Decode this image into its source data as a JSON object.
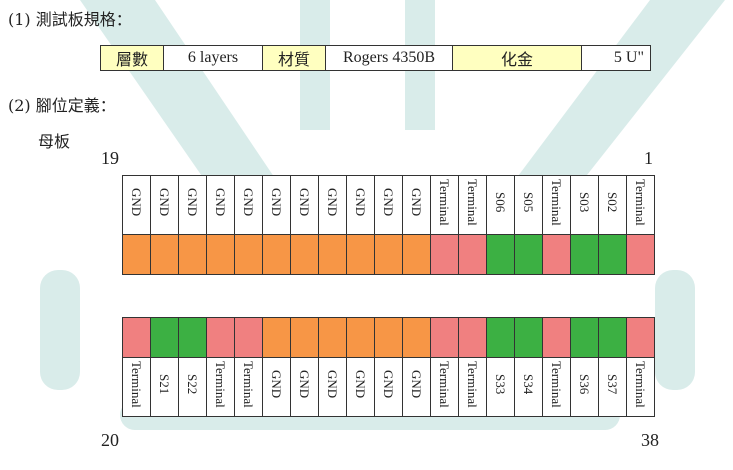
{
  "colors": {
    "gnd": "#f79646",
    "terminal": "#f08080",
    "signal": "#3cb043",
    "spec_label_bg": "#ffffc0",
    "watermark": "#d9ecea"
  },
  "section1": {
    "prefix": "(1)",
    "title": "測試板規格："
  },
  "spec": [
    {
      "label": "層數",
      "value": "6 layers"
    },
    {
      "label": "材質",
      "value": "Rogers 4350B"
    },
    {
      "label": "化金",
      "value": "5 U\""
    }
  ],
  "section2": {
    "prefix": "(2)",
    "title": "腳位定義：",
    "subtitle": "母板"
  },
  "pin_numbers": {
    "top_left": "19",
    "top_right": "1",
    "bottom_left": "20",
    "bottom_right": "38"
  },
  "top_row": [
    {
      "name": "GND",
      "type": "gnd"
    },
    {
      "name": "GND",
      "type": "gnd"
    },
    {
      "name": "GND",
      "type": "gnd"
    },
    {
      "name": "GND",
      "type": "gnd"
    },
    {
      "name": "GND",
      "type": "gnd"
    },
    {
      "name": "GND",
      "type": "gnd"
    },
    {
      "name": "GND",
      "type": "gnd"
    },
    {
      "name": "GND",
      "type": "gnd"
    },
    {
      "name": "GND",
      "type": "gnd"
    },
    {
      "name": "GND",
      "type": "gnd"
    },
    {
      "name": "GND",
      "type": "gnd"
    },
    {
      "name": "Terminal",
      "type": "terminal"
    },
    {
      "name": "Terminal",
      "type": "terminal"
    },
    {
      "name": "S06",
      "type": "signal"
    },
    {
      "name": "S05",
      "type": "signal"
    },
    {
      "name": "Terminal",
      "type": "terminal"
    },
    {
      "name": "S03",
      "type": "signal"
    },
    {
      "name": "S02",
      "type": "signal"
    },
    {
      "name": "Terminal",
      "type": "terminal"
    }
  ],
  "bottom_row": [
    {
      "name": "Terminal",
      "type": "terminal"
    },
    {
      "name": "S21",
      "type": "signal"
    },
    {
      "name": "S22",
      "type": "signal"
    },
    {
      "name": "Terminal",
      "type": "terminal"
    },
    {
      "name": "Terminal",
      "type": "terminal"
    },
    {
      "name": "GND",
      "type": "gnd"
    },
    {
      "name": "GND",
      "type": "gnd"
    },
    {
      "name": "GND",
      "type": "gnd"
    },
    {
      "name": "GND",
      "type": "gnd"
    },
    {
      "name": "GND",
      "type": "gnd"
    },
    {
      "name": "GND",
      "type": "gnd"
    },
    {
      "name": "Terminal",
      "type": "terminal"
    },
    {
      "name": "Terminal",
      "type": "terminal"
    },
    {
      "name": "S33",
      "type": "signal"
    },
    {
      "name": "S34",
      "type": "signal"
    },
    {
      "name": "Terminal",
      "type": "terminal"
    },
    {
      "name": "S36",
      "type": "signal"
    },
    {
      "name": "S37",
      "type": "signal"
    },
    {
      "name": "Terminal",
      "type": "terminal"
    }
  ]
}
